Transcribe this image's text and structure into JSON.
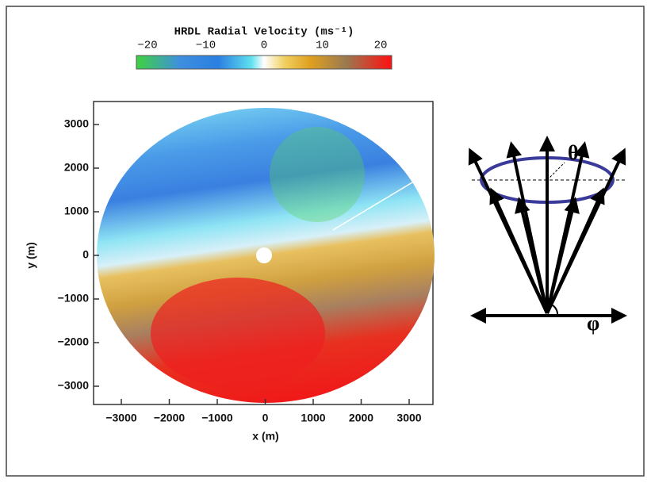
{
  "figure": {
    "colorbar": {
      "title": "HRDL Radial Velocity (ms⁻¹)",
      "ticks": [
        "−20",
        "−10",
        "0",
        "10",
        "20"
      ]
    },
    "plot": {
      "x_label": "x (m)",
      "y_label": "y (m)",
      "x_ticks": [
        "−3000",
        "−2000",
        "−1000",
        "0",
        "1000",
        "2000",
        "3000"
      ],
      "y_ticks": [
        "3000",
        "2000",
        "1000",
        "0",
        "−1000",
        "−2000",
        "−3000"
      ]
    }
  },
  "diagram": {
    "theta": "θ",
    "phi": "φ"
  }
}
